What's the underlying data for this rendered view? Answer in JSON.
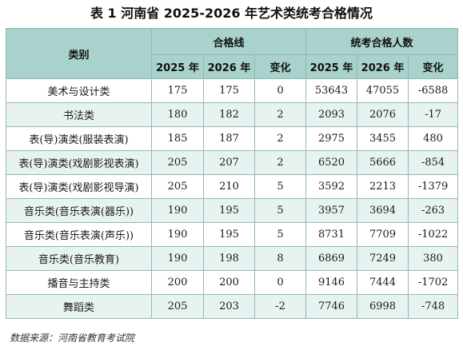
{
  "title": "表 1  河南省 2025-2026 年艺术类统考合格情况",
  "header": {
    "category": "类别",
    "group_pass_line": "合格线",
    "group_pass_count": "统考合格人数",
    "col_2025": "2025 年",
    "col_2026": "2026 年",
    "col_change": "变化"
  },
  "rows": [
    {
      "category": "美术与设计类",
      "line_2025": "175",
      "line_2026": "175",
      "line_change": "0",
      "count_2025": "53643",
      "count_2026": "47055",
      "count_change": "-6588"
    },
    {
      "category": "书法类",
      "line_2025": "180",
      "line_2026": "182",
      "line_change": "2",
      "count_2025": "2093",
      "count_2026": "2076",
      "count_change": "-17"
    },
    {
      "category": "表(导)演类(服装表演)",
      "line_2025": "185",
      "line_2026": "187",
      "line_change": "2",
      "count_2025": "2975",
      "count_2026": "3455",
      "count_change": "480"
    },
    {
      "category": "表(导)演类(戏剧影视表演)",
      "line_2025": "205",
      "line_2026": "207",
      "line_change": "2",
      "count_2025": "6520",
      "count_2026": "5666",
      "count_change": "-854"
    },
    {
      "category": "表(导)演类(戏剧影视导演)",
      "line_2025": "205",
      "line_2026": "210",
      "line_change": "5",
      "count_2025": "3592",
      "count_2026": "2213",
      "count_change": "-1379"
    },
    {
      "category": "音乐类(音乐表演(器乐))",
      "line_2025": "190",
      "line_2026": "195",
      "line_change": "5",
      "count_2025": "3957",
      "count_2026": "3694",
      "count_change": "-263"
    },
    {
      "category": "音乐类(音乐表演(声乐))",
      "line_2025": "190",
      "line_2026": "195",
      "line_change": "5",
      "count_2025": "8731",
      "count_2026": "7709",
      "count_change": "-1022"
    },
    {
      "category": "音乐类(音乐教育)",
      "line_2025": "190",
      "line_2026": "198",
      "line_change": "8",
      "count_2025": "6869",
      "count_2026": "7249",
      "count_change": "380"
    },
    {
      "category": "播音与主持类",
      "line_2025": "200",
      "line_2026": "200",
      "line_change": "0",
      "count_2025": "9146",
      "count_2026": "7444",
      "count_change": "-1702"
    },
    {
      "category": "舞蹈类",
      "line_2025": "205",
      "line_2026": "203",
      "line_change": "-2",
      "count_2025": "7746",
      "count_2026": "6998",
      "count_change": "-748"
    }
  ],
  "source": "数据来源：河南省教育考试院",
  "colors": {
    "header_bg": "#a9d2cc",
    "stripe_bg": "#e8f3f1",
    "border": "#8fb9b3"
  }
}
